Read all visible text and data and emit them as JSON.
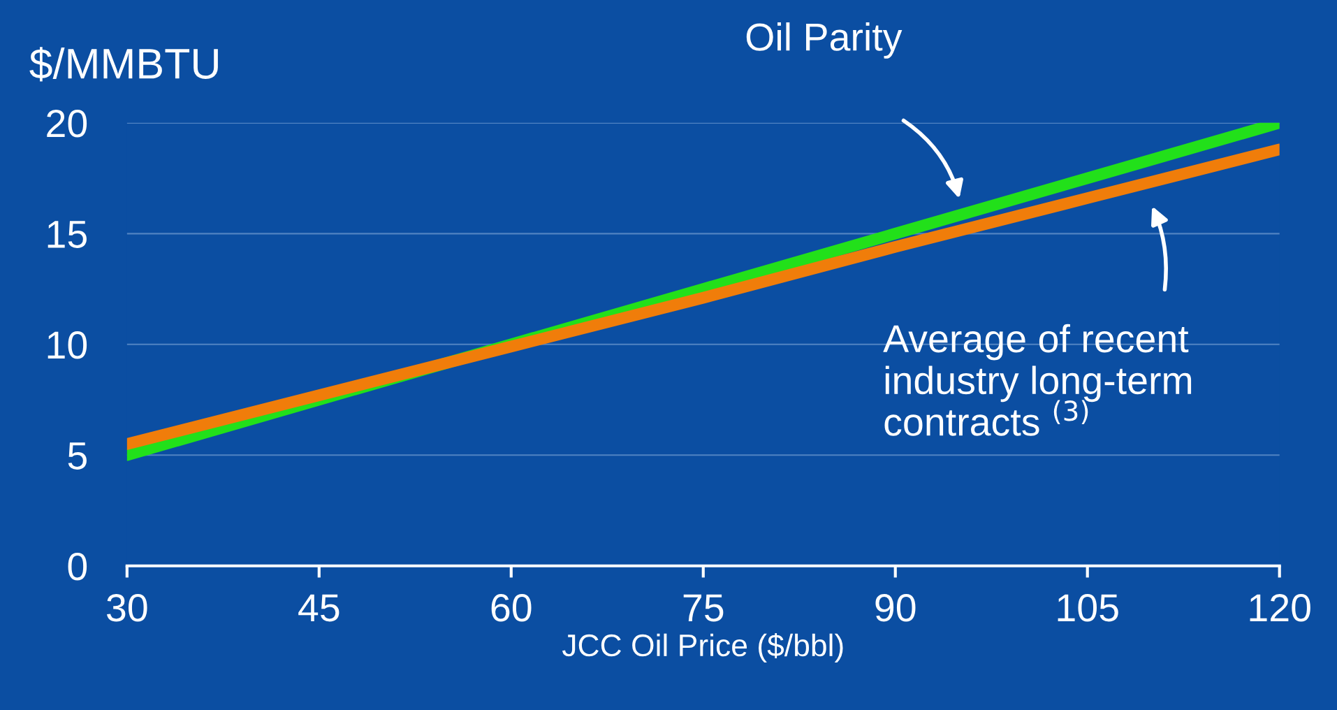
{
  "chart_data": {
    "type": "line",
    "ylabel": "$/MMBTU",
    "xlabel": "JCC Oil Price ($/bbl)",
    "x": [
      30,
      45,
      60,
      75,
      90,
      105,
      120
    ],
    "series": [
      {
        "color": "#22e01a",
        "values": [
          5,
          7.5,
          10,
          12.5,
          15,
          17.5,
          20
        ]
      },
      {
        "color": "#f07d0a",
        "values": [
          5.5,
          7.7,
          9.9,
          12.1,
          14.4,
          16.6,
          18.8
        ]
      }
    ],
    "xlim": [
      30,
      120
    ],
    "xticks": [
      30,
      45,
      60,
      75,
      90,
      105,
      120
    ],
    "ylim": [
      0,
      20
    ],
    "yticks": [
      0,
      5,
      10,
      15,
      20
    ],
    "grid": "y",
    "legend": false,
    "marker": "none",
    "line_style": "solid",
    "annotations": [
      "Oil Parity",
      "Average of recent\nindustry long-term\ncontracts $^{(3)}$"
    ]
  }
}
